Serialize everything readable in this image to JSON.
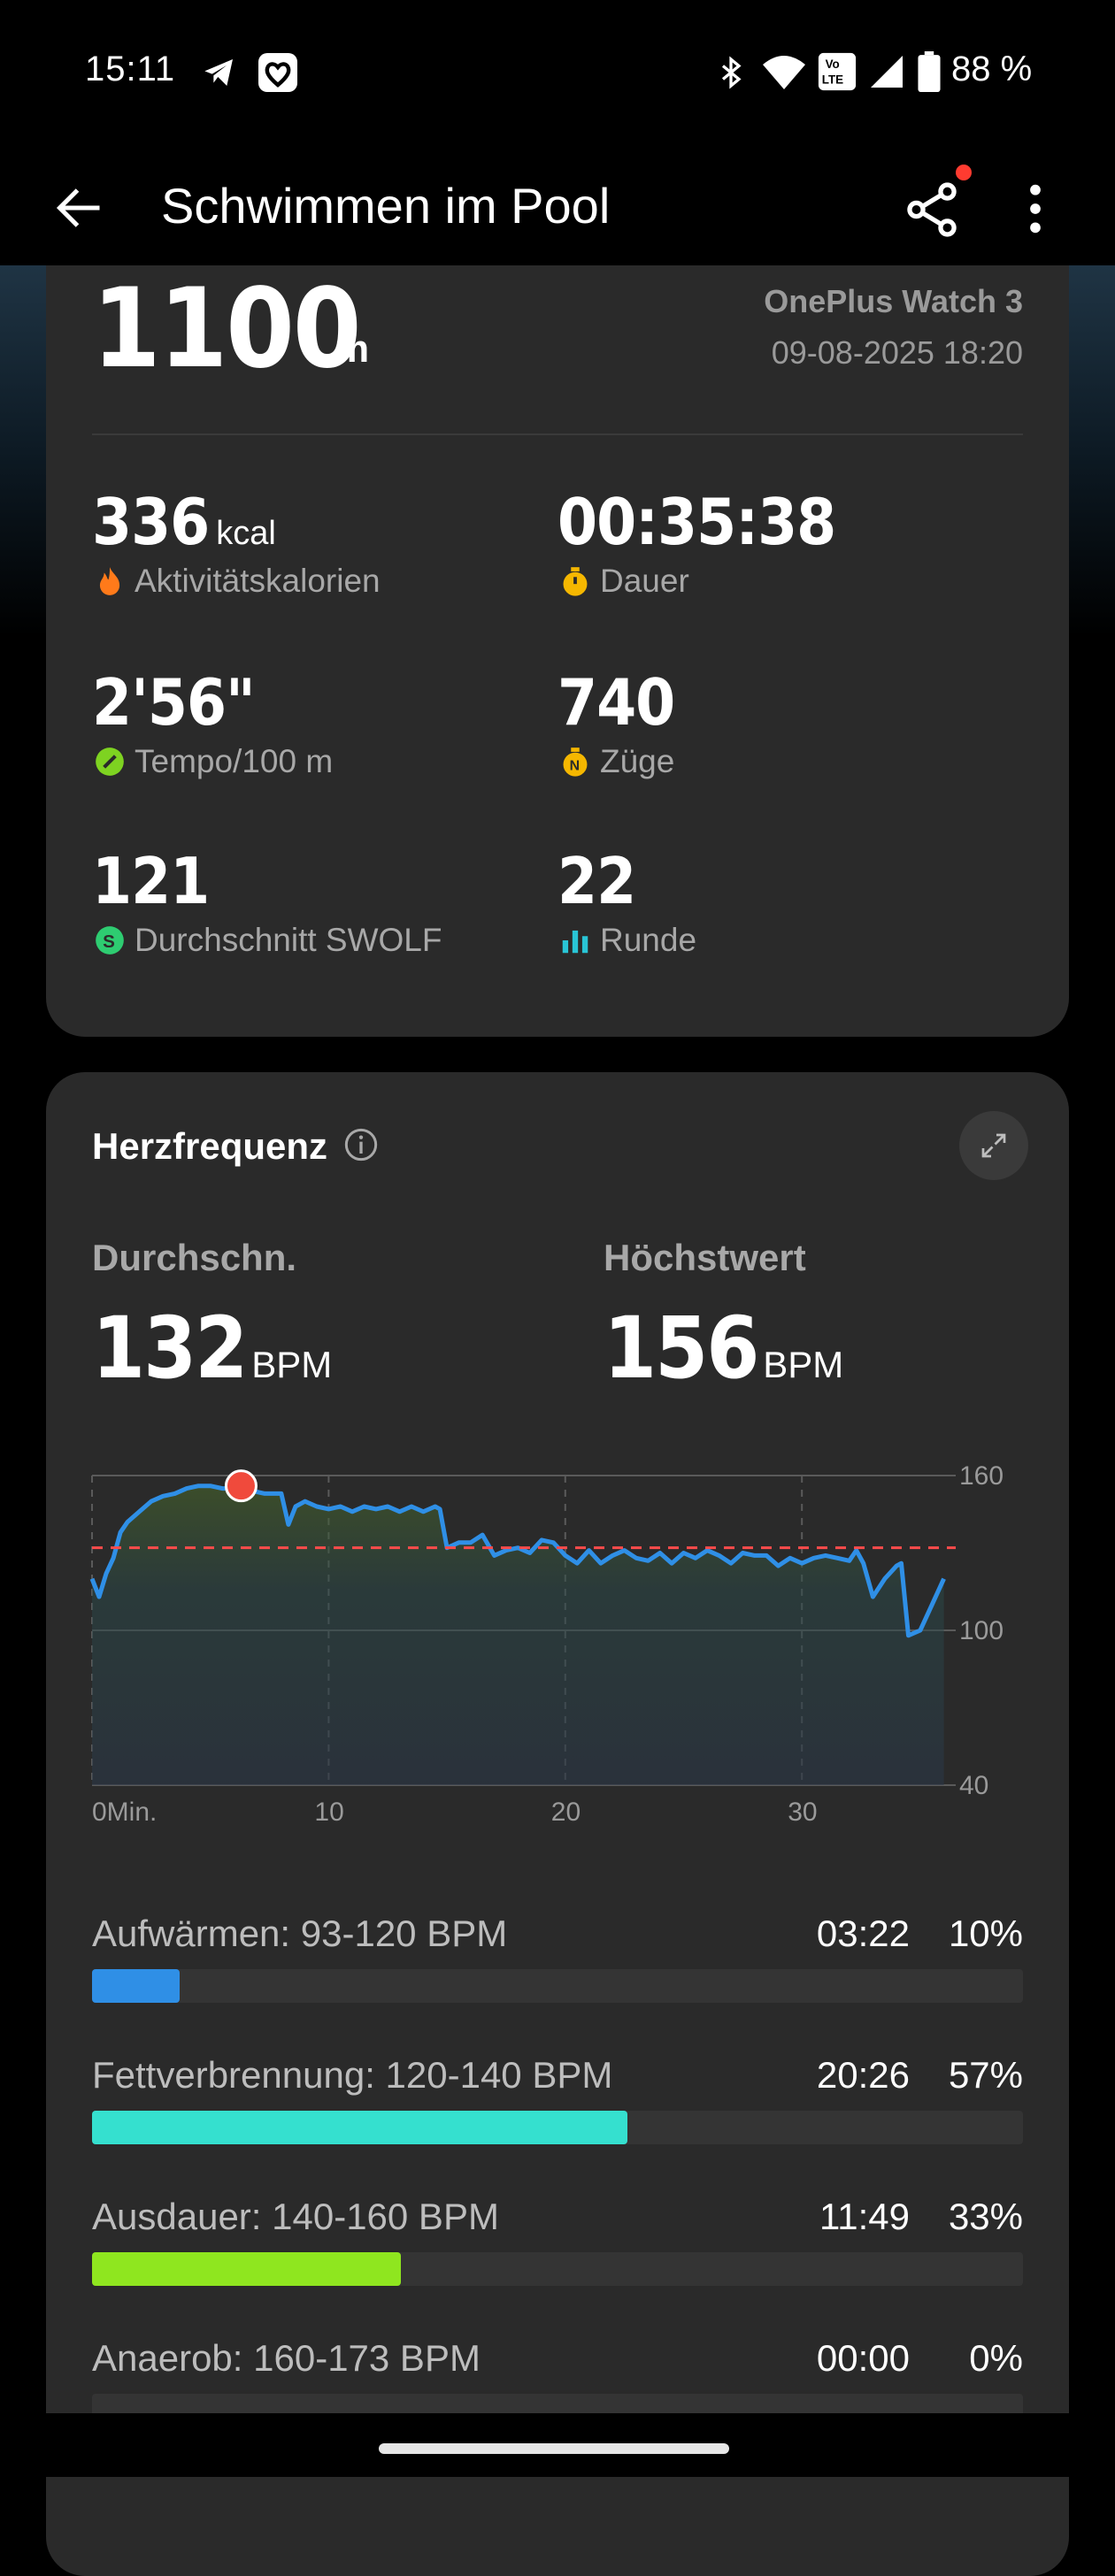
{
  "status_bar": {
    "time": "15:11",
    "battery": "88 %",
    "icons": [
      "telegram-icon",
      "health-app-icon",
      "bluetooth-icon",
      "wifi-icon",
      "volte-icon",
      "signal-icon",
      "battery-icon"
    ]
  },
  "header": {
    "title": "Schwimmen im Pool",
    "back_icon": "arrow-left-icon",
    "share_icon": "share-icon",
    "more_icon": "more-vertical-icon"
  },
  "summary": {
    "distance_value": "1100",
    "distance_unit": "m",
    "device": "OnePlus Watch 3",
    "datetime": "09-08-2025 18:20",
    "stats": [
      {
        "value": "336",
        "unit": "kcal",
        "label": "Aktivitätskalorien",
        "icon": "flame-icon",
        "color": "#ff7a1a"
      },
      {
        "value": "00:35:38",
        "unit": "",
        "label": "Dauer",
        "icon": "stopwatch-icon",
        "color": "#f5b700"
      },
      {
        "value": "2'56\"",
        "unit": "",
        "label": "Tempo/100 m",
        "icon": "pace-icon",
        "color": "#7ed321"
      },
      {
        "value": "740",
        "unit": "",
        "label": "Züge",
        "icon": "strokes-icon",
        "color": "#f5b700"
      },
      {
        "value": "121",
        "unit": "",
        "label": "Durchschnitt SWOLF",
        "icon": "swolf-icon",
        "color": "#2ecc71"
      },
      {
        "value": "22",
        "unit": "",
        "label": "Runde",
        "icon": "laps-icon",
        "color": "#29c5d6"
      }
    ]
  },
  "heart_rate": {
    "title": "Herzfrequenz",
    "avg_label": "Durchschn.",
    "avg_value": "132",
    "max_label": "Höchstwert",
    "max_value": "156",
    "unit": "BPM",
    "zones": [
      {
        "label": "Aufwärmen: 93-120 BPM",
        "time": "03:22",
        "pct": "10%",
        "fraction": 0.094,
        "color": "#2f8fe6"
      },
      {
        "label": "Fettverbrennung: 120-140 BPM",
        "time": "20:26",
        "pct": "57%",
        "fraction": 0.575,
        "color": "#35e0cf"
      },
      {
        "label": "Ausdauer: 140-160 BPM",
        "time": "11:49",
        "pct": "33%",
        "fraction": 0.332,
        "color": "#8fe61f"
      },
      {
        "label": "Anaerob: 160-173 BPM",
        "time": "00:00",
        "pct": "0%",
        "fraction": 0,
        "color": "#ff9f1a"
      }
    ]
  },
  "chart_data": {
    "type": "line",
    "xlabel": "",
    "ylabel": "",
    "x_ticks": [
      "0Min.",
      "10",
      "20",
      "30"
    ],
    "y_ticks": [
      "160",
      "100",
      "40"
    ],
    "ylim": [
      40,
      160
    ],
    "xlim": [
      0,
      36.5
    ],
    "avg_line": 132,
    "max_point": {
      "x": 6.3,
      "y": 156
    },
    "series": [
      {
        "x": [
          0,
          0.3,
          0.6,
          0.9,
          1.2,
          1.5,
          2,
          2.5,
          3,
          3.5,
          4,
          4.5,
          5,
          5.5,
          6,
          6.3,
          6.8,
          7.3,
          8,
          8.3,
          8.6,
          9,
          9.5,
          10,
          10.5,
          11,
          11.5,
          12,
          12.5,
          13,
          13.5,
          14,
          14.5,
          14.7,
          15,
          15.5,
          16,
          16.5,
          17,
          17.5,
          18,
          18.5,
          19,
          19.5,
          20,
          20.5,
          21,
          21.5,
          22,
          22.5,
          23,
          23.5,
          24,
          24.5,
          25,
          25.5,
          26,
          26.5,
          27,
          27.5,
          28,
          28.5,
          29,
          29.5,
          30,
          30.5,
          31,
          31.5,
          32,
          32.3,
          32.6,
          33,
          33.5,
          34,
          34.2,
          34.5,
          35,
          35.5,
          36
        ],
        "y": [
          120,
          113,
          122,
          128,
          138,
          142,
          146,
          150,
          152,
          153,
          155,
          156,
          156,
          155,
          155,
          156,
          154,
          153,
          153,
          141,
          148,
          150,
          148,
          147,
          148,
          146,
          148,
          147,
          148,
          146,
          148,
          146,
          148,
          147,
          132,
          134,
          134,
          137,
          129,
          131,
          132,
          130,
          135,
          134,
          129,
          126,
          131,
          126,
          129,
          131,
          128,
          127,
          130,
          126,
          130,
          128,
          131,
          129,
          126,
          130,
          129,
          129,
          125,
          128,
          126,
          128,
          129,
          128,
          127,
          131,
          126,
          113,
          120,
          125,
          126,
          98,
          100,
          110,
          120
        ]
      }
    ]
  }
}
